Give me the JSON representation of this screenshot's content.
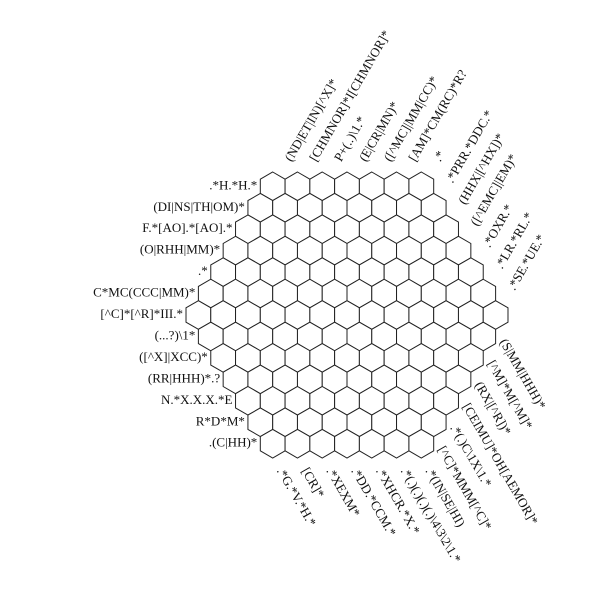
{
  "puzzle": {
    "colors": {
      "background": "#ffffff",
      "line": "#222222",
      "text": "#111111"
    },
    "left_clues": [
      ".*H.*H.*",
      "(DI|NS|TH|OM)*",
      "F.*[AO].*[AO].*",
      "(O|RHH|MM)*",
      ".*",
      "C*MC(CCC|MM)*",
      "[^C]*[^R]*III.*",
      "(...?)\\1*",
      "([^X]|XCC)*",
      "(RR|HHH)*.?",
      "N.*X.X.X.*E",
      "R*D*M*",
      ".(C|HH)*"
    ],
    "top_clues": [
      "(ND|ET|IN)[^X]*",
      "[CHMNOR]*I[CHMNOR]*",
      "P+(..)\\1.*",
      "(E|CR|MN)*",
      "([^MC]|MM|CC)*",
      "[AM]*CM(RC)*R?",
      ".*",
      ".*PRR.*DDC.*",
      "(HHX|[^HX])*",
      "([^EMC]|EM)*",
      ".*OXR.*",
      ".*LR.*RL.*",
      ".*SE.*UE.*"
    ],
    "bottom_clues": [
      ".*G.*V.*H.*",
      "[CR]*",
      ".*XEXM*",
      ".*DD.*CCM.*",
      ".*XHCR.*X.*",
      ".*(.)(.)(.)(.)\\4\\3\\2\\1.*",
      ".*(IN|SE|HI)",
      "[^C]*MMM[^C]*",
      ".*(.)C\\1X\\1.*",
      "[CEIMU]*OH[AEMOR]*",
      "(RX|[^R])*",
      "[^M]*M[^M]*",
      "(S|MM|HHH)*"
    ]
  }
}
